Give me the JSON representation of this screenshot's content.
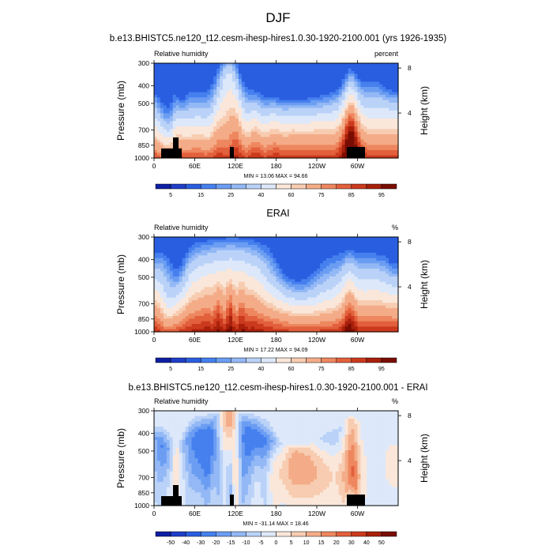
{
  "figure": {
    "season_title": "DJF"
  },
  "chart_data": [
    {
      "type": "heatmap",
      "title": "b.e13.BHISTC5.ne120_t12.cesm-ihesp-hires1.0.30-1920-2100.001 (yrs 1926-1935)",
      "left_label": "Relative humidity",
      "right_label": "percent",
      "ylabel": "Pressure (mb)",
      "y2label": "Height (km)",
      "x_ticks": [
        "0",
        "60E",
        "120E",
        "180",
        "120W",
        "60W"
      ],
      "y_ticks": [
        "300",
        "400",
        "500",
        "700",
        "850",
        "1000"
      ],
      "y2_ticks": [
        "8",
        "4"
      ],
      "stats_text": "MIN = 13.06  MAX = 94.66",
      "colorbar_levels": [
        "5",
        "15",
        "25",
        "40",
        "60",
        "75",
        "85",
        "95"
      ],
      "field": "model",
      "min": 13.06,
      "max": 94.66
    },
    {
      "type": "heatmap",
      "title": "ERAI",
      "left_label": "Relative humidity",
      "right_label": "%",
      "ylabel": "Pressure (mb)",
      "y2label": "Height (km)",
      "x_ticks": [
        "0",
        "60E",
        "120E",
        "180",
        "120W",
        "60W"
      ],
      "y_ticks": [
        "300",
        "400",
        "500",
        "700",
        "850",
        "1000"
      ],
      "y2_ticks": [
        "8",
        "4"
      ],
      "stats_text": "MIN = 17.22  MAX = 94.09",
      "colorbar_levels": [
        "5",
        "15",
        "25",
        "40",
        "60",
        "75",
        "85",
        "95"
      ],
      "field": "obs",
      "min": 17.22,
      "max": 94.09
    },
    {
      "type": "heatmap",
      "title": "b.e13.BHISTC5.ne120_t12.cesm-ihesp-hires1.0.30-1920-2100.001 - ERAI",
      "left_label": "Relative humidity",
      "right_label": "%",
      "ylabel": "Pressure (mb)",
      "y2label": "Height (km)",
      "x_ticks": [
        "0",
        "60E",
        "120E",
        "180",
        "120W",
        "60W"
      ],
      "y_ticks": [
        "300",
        "400",
        "500",
        "700",
        "850",
        "1000"
      ],
      "y2_ticks": [
        "8",
        "4"
      ],
      "stats_text": "MIN = -31.14  MAX = 18.46",
      "colorbar_levels": [
        "-50",
        "-40",
        "-30",
        "-20",
        "-15",
        "-10",
        "-5",
        "0",
        "5",
        "10",
        "15",
        "20",
        "30",
        "40",
        "50"
      ],
      "field": "diff",
      "min": -31.14,
      "max": 18.46
    }
  ]
}
